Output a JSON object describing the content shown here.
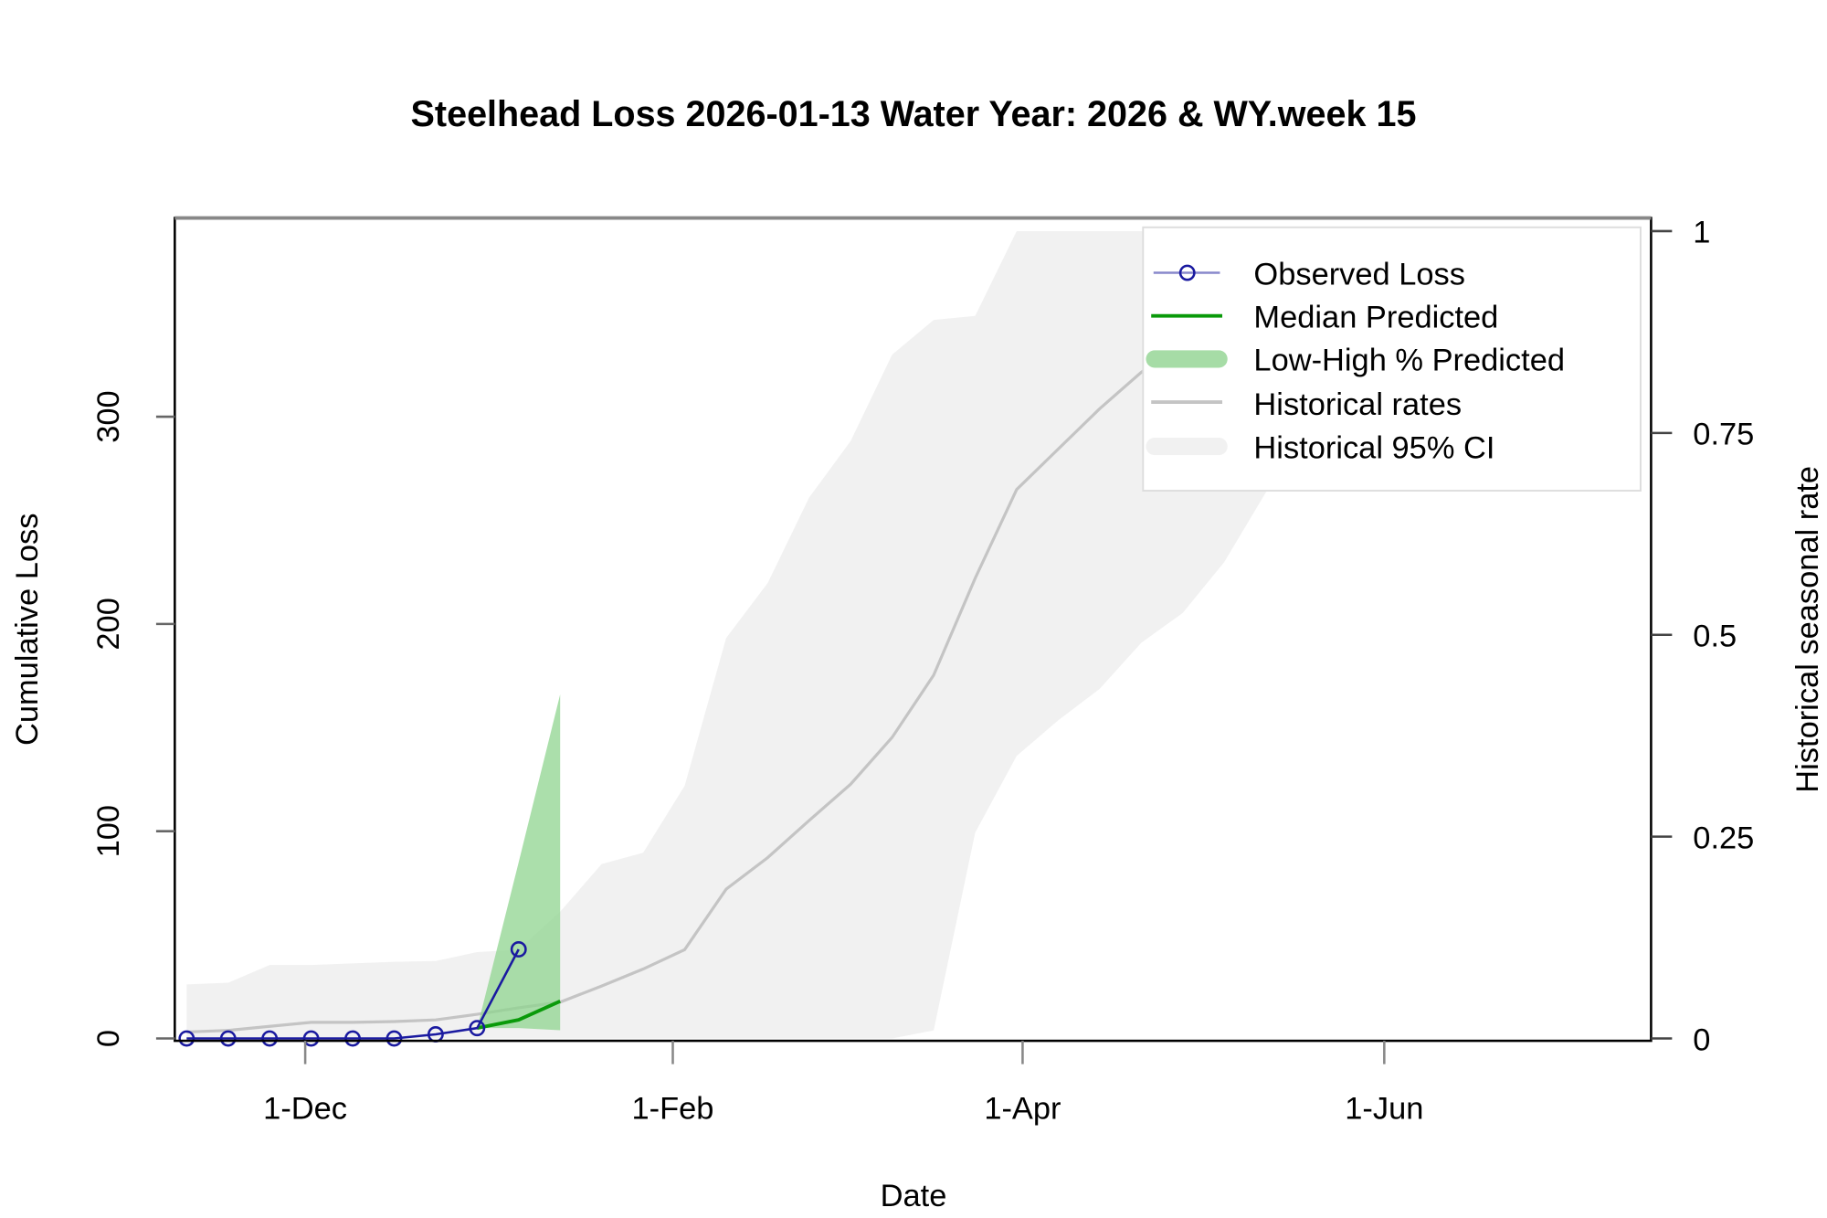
{
  "chart_data": {
    "type": "line",
    "title": "Steelhead Loss 2026-01-13  Water Year: 2026 & WY.week 15",
    "xlabel": "Date",
    "ylabel": "Cumulative Loss",
    "y2label": "Historical seasonal rate",
    "xlim": [
      "2025-11-09",
      "2026-07-16"
    ],
    "ylim": [
      0,
      397
    ],
    "y2lim": [
      0,
      1.1
    ],
    "x_ticks": [
      {
        "date": "2025-12-01",
        "label": "1-Dec"
      },
      {
        "date": "2026-02-01",
        "label": "1-Feb"
      },
      {
        "date": "2026-04-01",
        "label": "1-Apr"
      },
      {
        "date": "2026-06-01",
        "label": "1-Jun"
      }
    ],
    "y_ticks": [
      0,
      100,
      200,
      300
    ],
    "y2_ticks": [
      "0",
      "0.25",
      "0.5",
      "0.75",
      "1"
    ],
    "grid": false,
    "legend_position": "top-right",
    "legend": [
      "Observed Loss",
      "Median Predicted",
      "Low-High % Predicted",
      "Historical rates",
      "Historical 95% CI"
    ],
    "colors": {
      "observed": "#1a1aa0",
      "median": "#0a9a0a",
      "band": "#8fd48f",
      "historical": "#c4c4c4",
      "ci": "#f1f1f1"
    },
    "observed": {
      "name": "Observed Loss",
      "x": [
        "2025-11-11",
        "2025-11-18",
        "2025-11-25",
        "2025-12-02",
        "2025-12-09",
        "2025-12-16",
        "2025-12-23",
        "2025-12-30",
        "2026-01-06"
      ],
      "y": [
        0,
        0,
        0,
        0,
        0,
        0,
        2,
        5,
        43
      ]
    },
    "predicted": {
      "x": [
        "2025-12-30",
        "2026-01-06",
        "2026-01-13"
      ],
      "median": [
        5,
        9,
        18
      ],
      "low": [
        5,
        5,
        4
      ],
      "high": [
        5,
        85,
        166
      ]
    },
    "historical": {
      "x": [
        "2025-11-11",
        "2025-11-18",
        "2025-11-25",
        "2025-12-02",
        "2025-12-09",
        "2025-12-16",
        "2025-12-23",
        "2025-12-30",
        "2026-01-06",
        "2026-01-13",
        "2026-01-20",
        "2026-01-27",
        "2026-02-03",
        "2026-02-10",
        "2026-02-17",
        "2026-02-24",
        "2026-03-03",
        "2026-03-10",
        "2026-03-17",
        "2026-03-24",
        "2026-03-31",
        "2026-04-07",
        "2026-04-14",
        "2026-04-21",
        "2026-04-28",
        "2026-05-05",
        "2026-05-12",
        "2026-05-19"
      ],
      "rate": [
        0.008,
        0.01,
        0.015,
        0.02,
        0.02,
        0.021,
        0.023,
        0.03,
        0.038,
        0.045,
        0.065,
        0.086,
        0.11,
        0.185,
        0.224,
        0.27,
        0.315,
        0.373,
        0.45,
        0.57,
        0.68,
        0.73,
        0.78,
        0.825,
        0.86,
        0.89,
        0.92,
        0.94
      ],
      "ci_low": [
        0,
        0,
        0,
        0,
        0,
        0,
        0,
        0,
        0,
        0,
        0,
        0,
        0,
        0,
        0,
        0,
        0,
        0,
        0.01,
        0.255,
        0.35,
        0.394,
        0.433,
        0.49,
        0.527,
        0.59,
        0.676,
        0.74
      ],
      "ci_high": [
        0.067,
        0.069,
        0.091,
        0.091,
        0.093,
        0.095,
        0.096,
        0.107,
        0.11,
        0.157,
        0.216,
        0.23,
        0.313,
        0.496,
        0.564,
        0.67,
        0.74,
        0.847,
        0.89,
        0.895,
        1,
        1,
        1,
        1,
        1,
        1,
        1,
        1
      ]
    }
  }
}
